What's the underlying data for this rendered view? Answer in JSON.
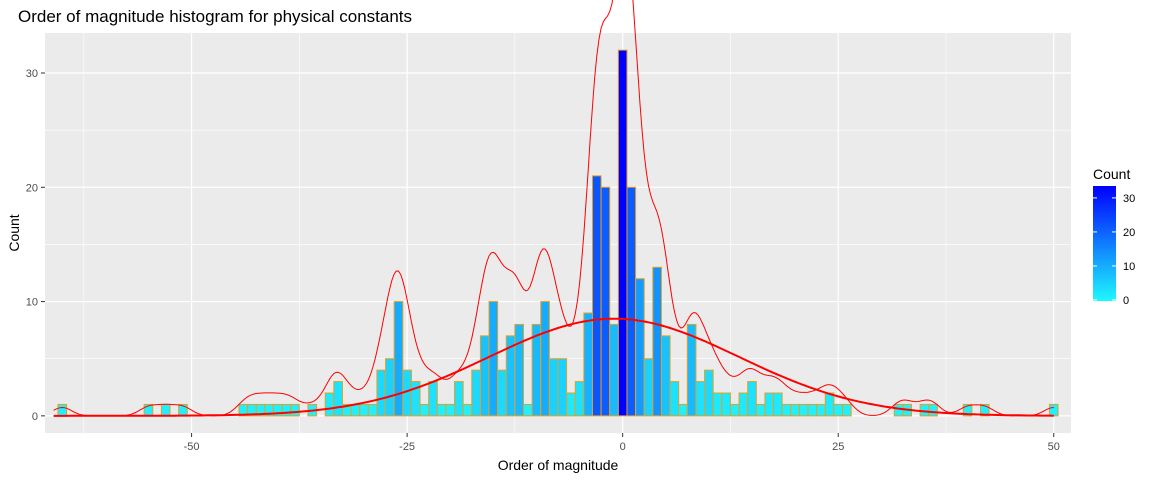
{
  "chart_data": {
    "type": "bar",
    "title": "Order of magnitude histogram for physical constants",
    "xlabel": "Order of magnitude",
    "ylabel": "Count",
    "xlim": [
      -67,
      52
    ],
    "ylim": [
      -1.5,
      33.5
    ],
    "xticks": [
      -50,
      -25,
      0,
      25,
      50
    ],
    "yticks": [
      0,
      10,
      20,
      30
    ],
    "grid": true,
    "legend": {
      "title": "Count",
      "position": "right",
      "ticks": [
        0,
        10,
        20,
        30
      ],
      "low_color": "#1ff8ff",
      "high_color": "#0000ff"
    },
    "bar_outline_color": "#e6a020",
    "curve_color": "#ff0000",
    "bins": [
      {
        "x": -65,
        "count": 1
      },
      {
        "x": -55,
        "count": 1
      },
      {
        "x": -53,
        "count": 1
      },
      {
        "x": -51,
        "count": 1
      },
      {
        "x": -44,
        "count": 1
      },
      {
        "x": -43,
        "count": 1
      },
      {
        "x": -42,
        "count": 1
      },
      {
        "x": -41,
        "count": 1
      },
      {
        "x": -40,
        "count": 1
      },
      {
        "x": -39,
        "count": 1
      },
      {
        "x": -38,
        "count": 1
      },
      {
        "x": -36,
        "count": 1
      },
      {
        "x": -34,
        "count": 2
      },
      {
        "x": -33,
        "count": 3
      },
      {
        "x": -32,
        "count": 1
      },
      {
        "x": -31,
        "count": 1
      },
      {
        "x": -30,
        "count": 1
      },
      {
        "x": -29,
        "count": 1
      },
      {
        "x": -28,
        "count": 4
      },
      {
        "x": -27,
        "count": 5
      },
      {
        "x": -26,
        "count": 10
      },
      {
        "x": -25,
        "count": 4
      },
      {
        "x": -24,
        "count": 3
      },
      {
        "x": -23,
        "count": 1
      },
      {
        "x": -22,
        "count": 3
      },
      {
        "x": -21,
        "count": 1
      },
      {
        "x": -20,
        "count": 1
      },
      {
        "x": -19,
        "count": 3
      },
      {
        "x": -18,
        "count": 1
      },
      {
        "x": -17,
        "count": 4
      },
      {
        "x": -16,
        "count": 7
      },
      {
        "x": -15,
        "count": 10
      },
      {
        "x": -14,
        "count": 4
      },
      {
        "x": -13,
        "count": 7
      },
      {
        "x": -12,
        "count": 8
      },
      {
        "x": -11,
        "count": 1
      },
      {
        "x": -10,
        "count": 8
      },
      {
        "x": -9,
        "count": 10
      },
      {
        "x": -8,
        "count": 5
      },
      {
        "x": -7,
        "count": 5
      },
      {
        "x": -6,
        "count": 2
      },
      {
        "x": -5,
        "count": 3
      },
      {
        "x": -4,
        "count": 9
      },
      {
        "x": -3,
        "count": 21
      },
      {
        "x": -2,
        "count": 20
      },
      {
        "x": -1,
        "count": 8
      },
      {
        "x": 0,
        "count": 32
      },
      {
        "x": 1,
        "count": 20
      },
      {
        "x": 2,
        "count": 12
      },
      {
        "x": 3,
        "count": 5
      },
      {
        "x": 4,
        "count": 13
      },
      {
        "x": 5,
        "count": 7
      },
      {
        "x": 6,
        "count": 3
      },
      {
        "x": 7,
        "count": 1
      },
      {
        "x": 8,
        "count": 8
      },
      {
        "x": 9,
        "count": 3
      },
      {
        "x": 10,
        "count": 4
      },
      {
        "x": 11,
        "count": 2
      },
      {
        "x": 12,
        "count": 2
      },
      {
        "x": 13,
        "count": 1
      },
      {
        "x": 14,
        "count": 2
      },
      {
        "x": 15,
        "count": 3
      },
      {
        "x": 16,
        "count": 1
      },
      {
        "x": 17,
        "count": 2
      },
      {
        "x": 18,
        "count": 2
      },
      {
        "x": 19,
        "count": 1
      },
      {
        "x": 20,
        "count": 1
      },
      {
        "x": 21,
        "count": 1
      },
      {
        "x": 22,
        "count": 1
      },
      {
        "x": 23,
        "count": 1
      },
      {
        "x": 24,
        "count": 2
      },
      {
        "x": 25,
        "count": 1
      },
      {
        "x": 26,
        "count": 1
      },
      {
        "x": 32,
        "count": 1
      },
      {
        "x": 33,
        "count": 1
      },
      {
        "x": 35,
        "count": 1
      },
      {
        "x": 36,
        "count": 1
      },
      {
        "x": 40,
        "count": 1
      },
      {
        "x": 42,
        "count": 1
      },
      {
        "x": 50,
        "count": 1
      }
    ],
    "normal_curve": {
      "mean": -1,
      "sd": 14.5,
      "peak": 8.5
    },
    "density_curve_bandwidth": 1.1
  }
}
